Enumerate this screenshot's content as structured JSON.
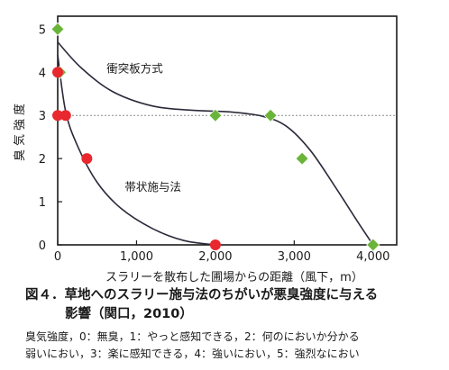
{
  "chart_data": {
    "type": "scatter",
    "xlabel": "スラリーを散布した圃場からの距離（風下，m）",
    "ylabel": "臭気強度",
    "xlim": [
      0,
      4300
    ],
    "ylim": [
      0,
      5.3
    ],
    "x_ticks": [
      0,
      1000,
      2000,
      3000,
      4000
    ],
    "x_tick_labels": [
      "0",
      "1,000",
      "2,000",
      "3,000",
      "4,000"
    ],
    "y_ticks": [
      0,
      1,
      2,
      3,
      4,
      5
    ],
    "y_tick_labels": [
      "0",
      "1",
      "2",
      "3",
      "4",
      "5"
    ],
    "reference_line": {
      "y": 3,
      "style": "dashed"
    },
    "grid": false,
    "series": [
      {
        "name": "衝突板方式",
        "marker": "diamond",
        "color": "#6bb43a",
        "points": [
          {
            "x": 0,
            "y": 5
          },
          {
            "x": 30,
            "y": 4
          },
          {
            "x": 2000,
            "y": 3
          },
          {
            "x": 2700,
            "y": 3
          },
          {
            "x": 3100,
            "y": 2
          },
          {
            "x": 4000,
            "y": 0
          }
        ],
        "curve": [
          {
            "x": 0,
            "y": 4.7
          },
          {
            "x": 300,
            "y": 4.1
          },
          {
            "x": 700,
            "y": 3.55
          },
          {
            "x": 1200,
            "y": 3.22
          },
          {
            "x": 1700,
            "y": 3.12
          },
          {
            "x": 2200,
            "y": 3.08
          },
          {
            "x": 2600,
            "y": 2.98
          },
          {
            "x": 2900,
            "y": 2.75
          },
          {
            "x": 3200,
            "y": 2.2
          },
          {
            "x": 3500,
            "y": 1.4
          },
          {
            "x": 3800,
            "y": 0.55
          },
          {
            "x": 4000,
            "y": 0.0
          }
        ]
      },
      {
        "name": "帯状施与法",
        "marker": "circle",
        "color": "#e8282e",
        "points": [
          {
            "x": 0,
            "y": 4
          },
          {
            "x": 0,
            "y": 3
          },
          {
            "x": 100,
            "y": 3
          },
          {
            "x": 370,
            "y": 2
          },
          {
            "x": 2000,
            "y": 0
          }
        ],
        "curve": [
          {
            "x": 0,
            "y": 4.4
          },
          {
            "x": 100,
            "y": 3.1
          },
          {
            "x": 250,
            "y": 2.3
          },
          {
            "x": 500,
            "y": 1.45
          },
          {
            "x": 800,
            "y": 0.85
          },
          {
            "x": 1200,
            "y": 0.38
          },
          {
            "x": 1600,
            "y": 0.1
          },
          {
            "x": 2000,
            "y": 0.0
          }
        ]
      }
    ],
    "curve_labels": [
      {
        "text": "衝突板方式",
        "x": 620,
        "y": 4.0
      },
      {
        "text": "帯状施与法",
        "x": 850,
        "y": 1.25
      }
    ]
  },
  "caption": {
    "line1": "図４．草地へのスラリー施与法のちがいが悪臭強度に与える",
    "line2": "影響（関口，2010）"
  },
  "note": {
    "line1": "臭気強度，0：無臭，1：やっと感知できる，2：何のにおいか分かる",
    "line2": "弱いにおい，3：楽に感知できる，4：強いにおい，5：強烈なにおい"
  }
}
